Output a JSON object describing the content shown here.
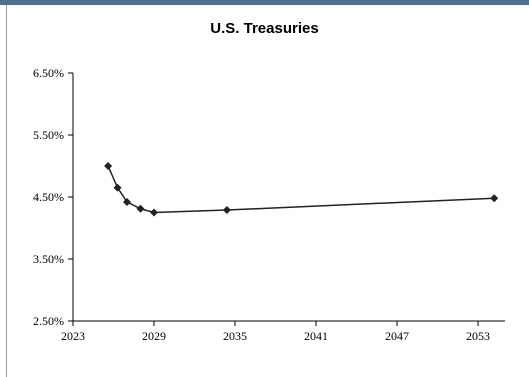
{
  "chart_data": {
    "type": "line",
    "title": "U.S. Treasuries",
    "xlabel": "",
    "ylabel": "",
    "xlim": [
      2023,
      2055
    ],
    "ylim": [
      2.5,
      6.5
    ],
    "x_ticks": [
      2023,
      2029,
      2035,
      2041,
      2047,
      2053
    ],
    "x_tick_labels": [
      "2023",
      "2029",
      "2035",
      "2041",
      "2047",
      "2053"
    ],
    "y_ticks": [
      2.5,
      3.5,
      4.5,
      5.5,
      6.5
    ],
    "y_tick_labels": [
      "2.50%",
      "3.50%",
      "4.50%",
      "5.50%",
      "6.50%"
    ],
    "grid": false,
    "legend": "none",
    "series": [
      {
        "color": "#222222",
        "marker": "diamond",
        "x": [
          2025.6,
          2026.3,
          2027.0,
          2028.0,
          2029.0,
          2034.4,
          2054.2
        ],
        "y": [
          5.0,
          4.65,
          4.42,
          4.31,
          4.25,
          4.29,
          4.48
        ]
      }
    ]
  }
}
